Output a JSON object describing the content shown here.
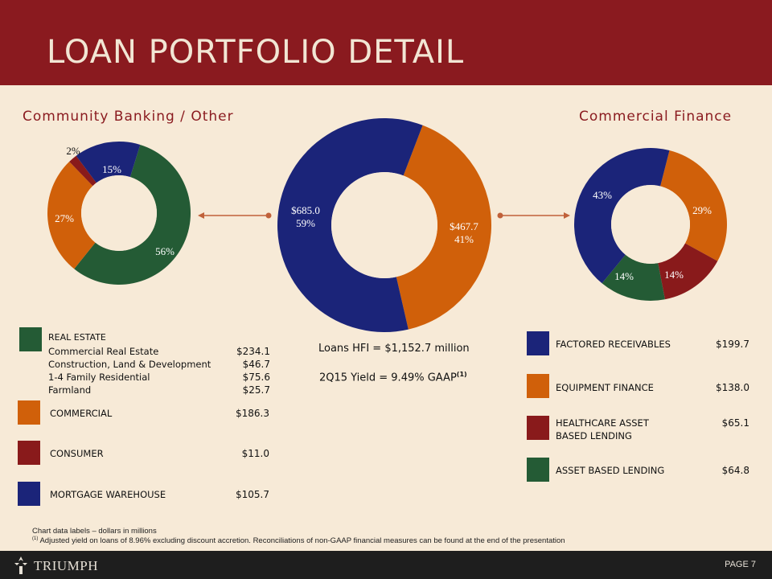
{
  "title": "LOAN PORTFOLIO DETAIL",
  "left_section_title": "Community Banking / Other",
  "right_section_title": "Commercial Finance",
  "colors": {
    "header": "#8a1a1f",
    "background": "#f7ead7",
    "green": "#245b35",
    "orange": "#d0600a",
    "red": "#891a1b",
    "navy": "#1b2479",
    "connector": "#c0613a"
  },
  "chart_data": [
    {
      "type": "pie",
      "title": "Community Banking / Other",
      "categories": [
        "Real Estate",
        "Commercial",
        "Consumer",
        "Mortgage Warehouse"
      ],
      "values": [
        56,
        27,
        2,
        15
      ],
      "labels": [
        "56%",
        "27%",
        "2%",
        "15%"
      ]
    },
    {
      "type": "pie",
      "title": "Loans HFI",
      "categories": [
        "Community Banking / Other",
        "Commercial Finance"
      ],
      "values": [
        685.0,
        467.7
      ],
      "value_labels": [
        "$685.0",
        "$467.7"
      ],
      "pct_labels": [
        "59%",
        "41%"
      ]
    },
    {
      "type": "pie",
      "title": "Commercial Finance",
      "categories": [
        "Factored Receivables",
        "Equipment Finance",
        "Healthcare Asset Based Lending",
        "Asset Based Lending"
      ],
      "values": [
        43,
        29,
        14,
        14
      ],
      "labels": [
        "43%",
        "29%",
        "14%",
        "14%"
      ]
    }
  ],
  "center": {
    "loans_hfi": "Loans HFI = $1,152.7 million",
    "yield_text": "2Q15 Yield = 9.49% GAAP",
    "yield_sup": "(1)"
  },
  "left_legend": {
    "real_estate": {
      "label": "REAL ESTATE",
      "rows": [
        {
          "label": "Commercial Real Estate",
          "value": "$234.1"
        },
        {
          "label": "Construction, Land  & Development",
          "value": "$46.7"
        },
        {
          "label": "1-4 Family Residential",
          "value": "$75.6"
        },
        {
          "label": "Farmland",
          "value": "$25.7"
        }
      ]
    },
    "commercial": {
      "label": "COMMERCIAL",
      "value": "$186.3"
    },
    "consumer": {
      "label": "CONSUMER",
      "value": "$11.0"
    },
    "mortgage": {
      "label": "MORTGAGE WAREHOUSE",
      "value": "$105.7"
    }
  },
  "right_legend": {
    "factored": {
      "label": "FACTORED RECEIVABLES",
      "value": "$199.7"
    },
    "equipment": {
      "label": "EQUIPMENT FINANCE",
      "value": "$138.0"
    },
    "healthcare": {
      "label_line1": "HEALTHCARE ASSET",
      "label_line2": "BASED LENDING",
      "value": "$65.1"
    },
    "abl": {
      "label": "ASSET BASED LENDING",
      "value": "$64.8"
    }
  },
  "footnotes": {
    "line1": "Chart data labels – dollars in millions",
    "line2_sup": "(1)",
    "line2": " Adjusted yield on loans of 8.96% excluding discount accretion. Reconciliations of non-GAAP financial measures can be found at the end of the presentation"
  },
  "footer": {
    "logo_text": "TRIUMPH",
    "page": "PAGE 7"
  }
}
